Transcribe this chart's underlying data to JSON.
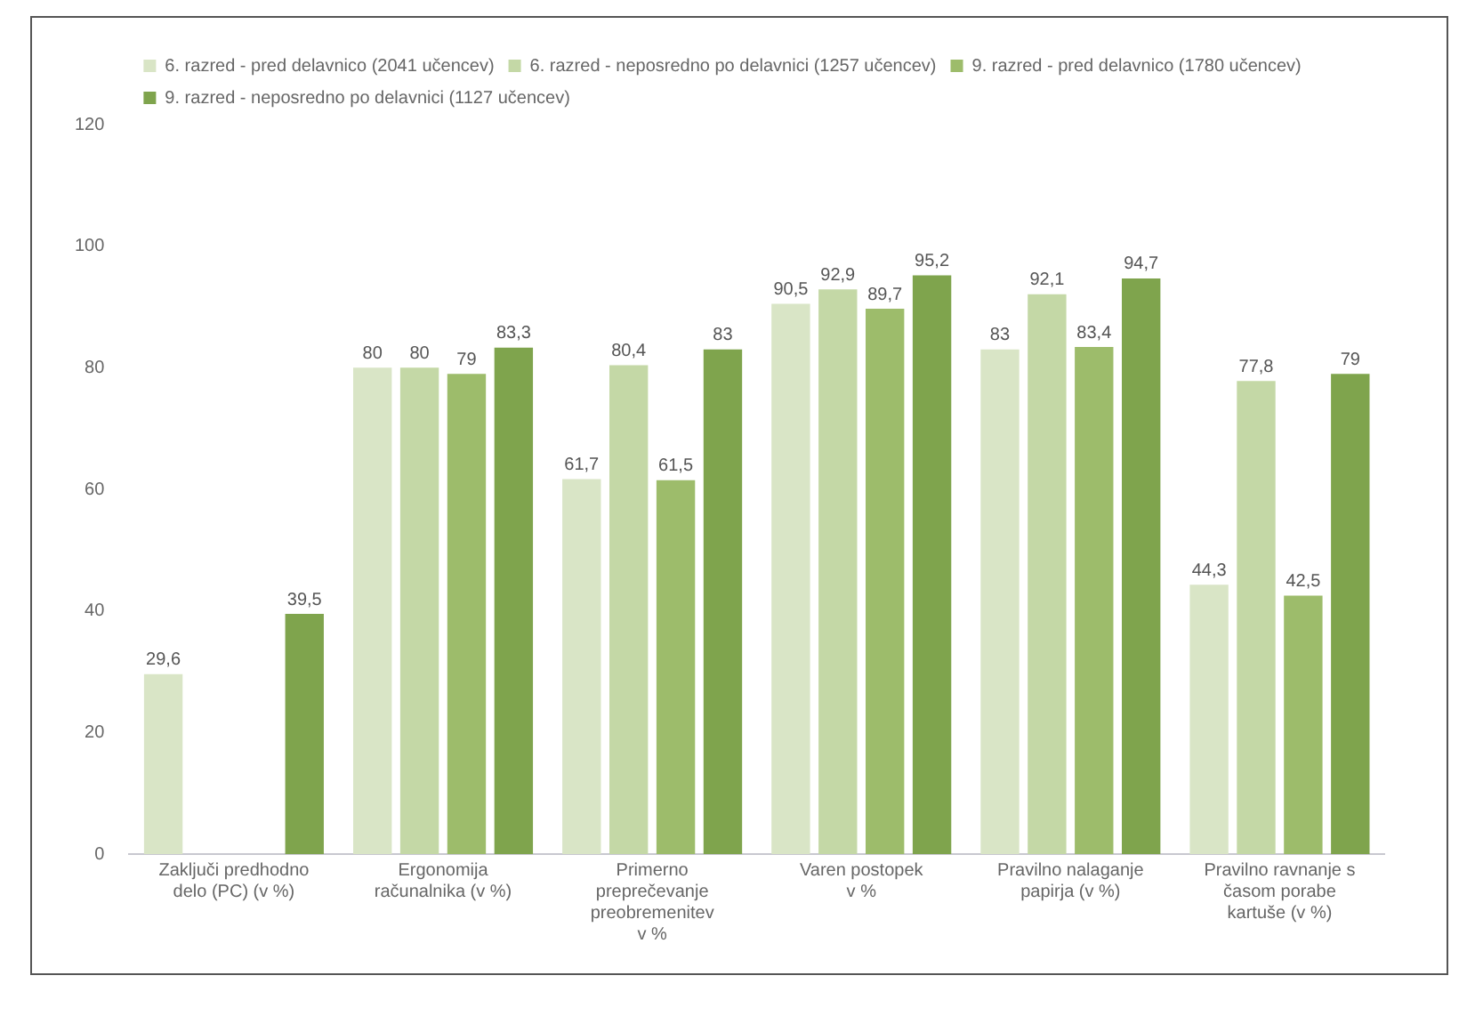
{
  "chart_data": {
    "type": "bar",
    "categories": [
      "Zaključi predhodno\ndelo (PC) (v %)",
      "Ergonomija\nračunalnika (v %)",
      "Primerno\npreprečevanje\npreobremenitev\nv %",
      "Varen postopek\nv %",
      "Pravilno nalaganje\npapirja (v %)",
      "Pravilno ravnanje s\nčasom porabe\nkartuše (v %)"
    ],
    "series": [
      {
        "name": "6. razred - pred delavnico (2041 učencev)",
        "color": "#d9e5c6",
        "values": [
          29.6,
          80,
          61.7,
          90.5,
          83,
          44.3
        ],
        "value_labels": [
          "29,6",
          "80",
          "61,7",
          "90,5",
          "83",
          "44,3"
        ]
      },
      {
        "name": "6. razred - neposredno po delavnici (1257 učencev)",
        "color": "#c4d8a6",
        "values": [
          null,
          80,
          80.4,
          92.9,
          92.1,
          77.8
        ],
        "value_labels": [
          null,
          "80",
          "80,4",
          "92,9",
          "92,1",
          "77,8"
        ]
      },
      {
        "name": "9. razred - pred delavnico (1780 učencev)",
        "color": "#9dbc6b",
        "values": [
          null,
          79,
          61.5,
          89.7,
          83.4,
          42.5
        ],
        "value_labels": [
          null,
          "79",
          "61,5",
          "89,7",
          "83,4",
          "42,5"
        ]
      },
      {
        "name": "9. razred - neposredno po delavnici (1127 učencev)",
        "color": "#7fa44d",
        "values": [
          39.5,
          83.3,
          83,
          95.2,
          94.7,
          79
        ],
        "value_labels": [
          "39,5",
          "83,3",
          "83",
          "95,2",
          "94,7",
          "79"
        ]
      }
    ],
    "ylim": [
      0,
      120
    ],
    "yticks": [
      0,
      20,
      40,
      60,
      80,
      100,
      120
    ],
    "grid": false,
    "legend": "top left"
  }
}
